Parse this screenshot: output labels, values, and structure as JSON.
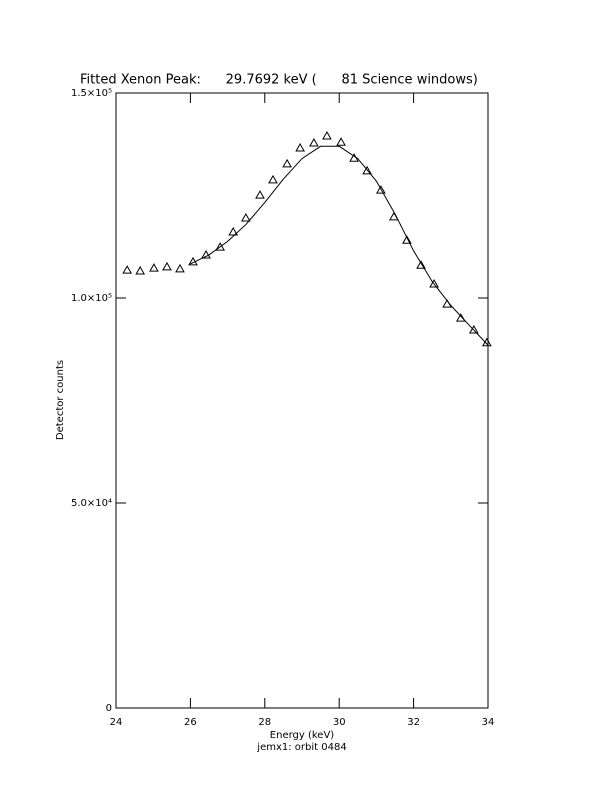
{
  "chart_data": {
    "type": "scatter",
    "title": "Fitted Xenon Peak:      29.7692 keV (      81 Science windows)",
    "x_label": "Energy (keV)",
    "y_label": "Detector counts",
    "footer": "jemx1: orbit 0484",
    "xlim": [
      24,
      34
    ],
    "xticks": [
      24,
      26,
      28,
      30,
      32,
      34
    ],
    "ylim": [
      0,
      150000
    ],
    "yticks": [
      {
        "value": 0,
        "label": "0"
      },
      {
        "value": 50000,
        "label": "5.0×10⁴"
      },
      {
        "value": 100000,
        "label": "1.0×10⁵"
      },
      {
        "value": 150000,
        "label": "1.5×10⁵"
      }
    ],
    "color": "#000000",
    "series": [
      {
        "marker": "triangle",
        "x": [
          24.3,
          24.65,
          25.02,
          25.37,
          25.72,
          26.07,
          26.42,
          26.8,
          27.15,
          27.49,
          27.87,
          28.22,
          28.6,
          28.95,
          29.32,
          29.67,
          30.05,
          30.4,
          30.75,
          31.12,
          31.47,
          31.82,
          32.2,
          32.55,
          32.9,
          33.27,
          33.62,
          33.97
        ],
        "values": [
          106800,
          106600,
          107300,
          107600,
          107100,
          108800,
          110500,
          112400,
          116100,
          119500,
          125100,
          128800,
          132700,
          136600,
          137800,
          139500,
          138000,
          134100,
          131000,
          126300,
          119800,
          114100,
          108000,
          103400,
          98500,
          95100,
          92200,
          89100
        ]
      },
      {
        "marker": "line",
        "x": [
          26,
          26.5,
          27,
          27.5,
          28,
          28.5,
          29,
          29.5,
          30,
          30.5,
          31,
          31.5,
          32,
          32.5,
          33,
          33.5,
          34
        ],
        "values": [
          108300,
          110500,
          113800,
          118000,
          123300,
          129000,
          134000,
          137000,
          137000,
          134000,
          128500,
          120500,
          111500,
          104000,
          98200,
          93300,
          88500
        ]
      }
    ]
  }
}
